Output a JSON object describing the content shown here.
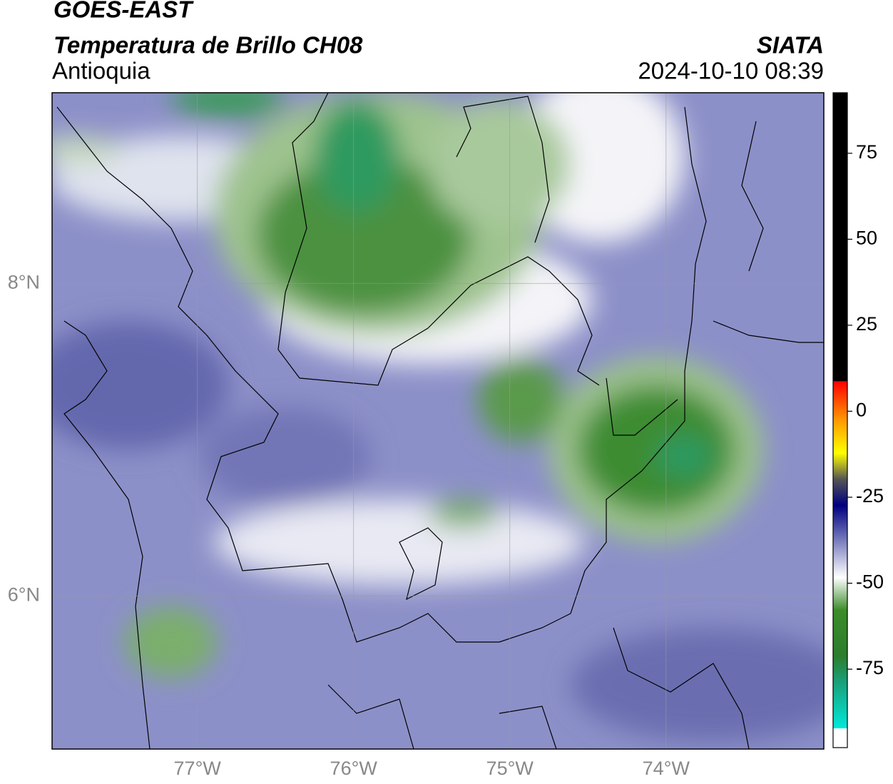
{
  "header": {
    "title": "GOES-EAST",
    "subtitle": "Temperatura de Brillo CH08",
    "region": "Antioquia",
    "source": "SIATA",
    "datetime": "2024-10-10 08:39"
  },
  "map": {
    "xlim": [
      -77.93,
      -72.99
    ],
    "ylim": [
      5.02,
      9.22
    ],
    "xticks": [
      {
        "value": -77,
        "label": "77°W"
      },
      {
        "value": -76,
        "label": "76°W"
      },
      {
        "value": -75,
        "label": "75°W"
      },
      {
        "value": -74,
        "label": "74°W"
      }
    ],
    "yticks": [
      {
        "value": 8,
        "label": "8°N"
      },
      {
        "value": 6,
        "label": "6°N"
      }
    ]
  },
  "colorbar": {
    "lim": [
      -97.8,
      92.6
    ],
    "ticks": [
      75,
      50,
      25,
      0,
      -25,
      -50,
      -75
    ]
  }
}
